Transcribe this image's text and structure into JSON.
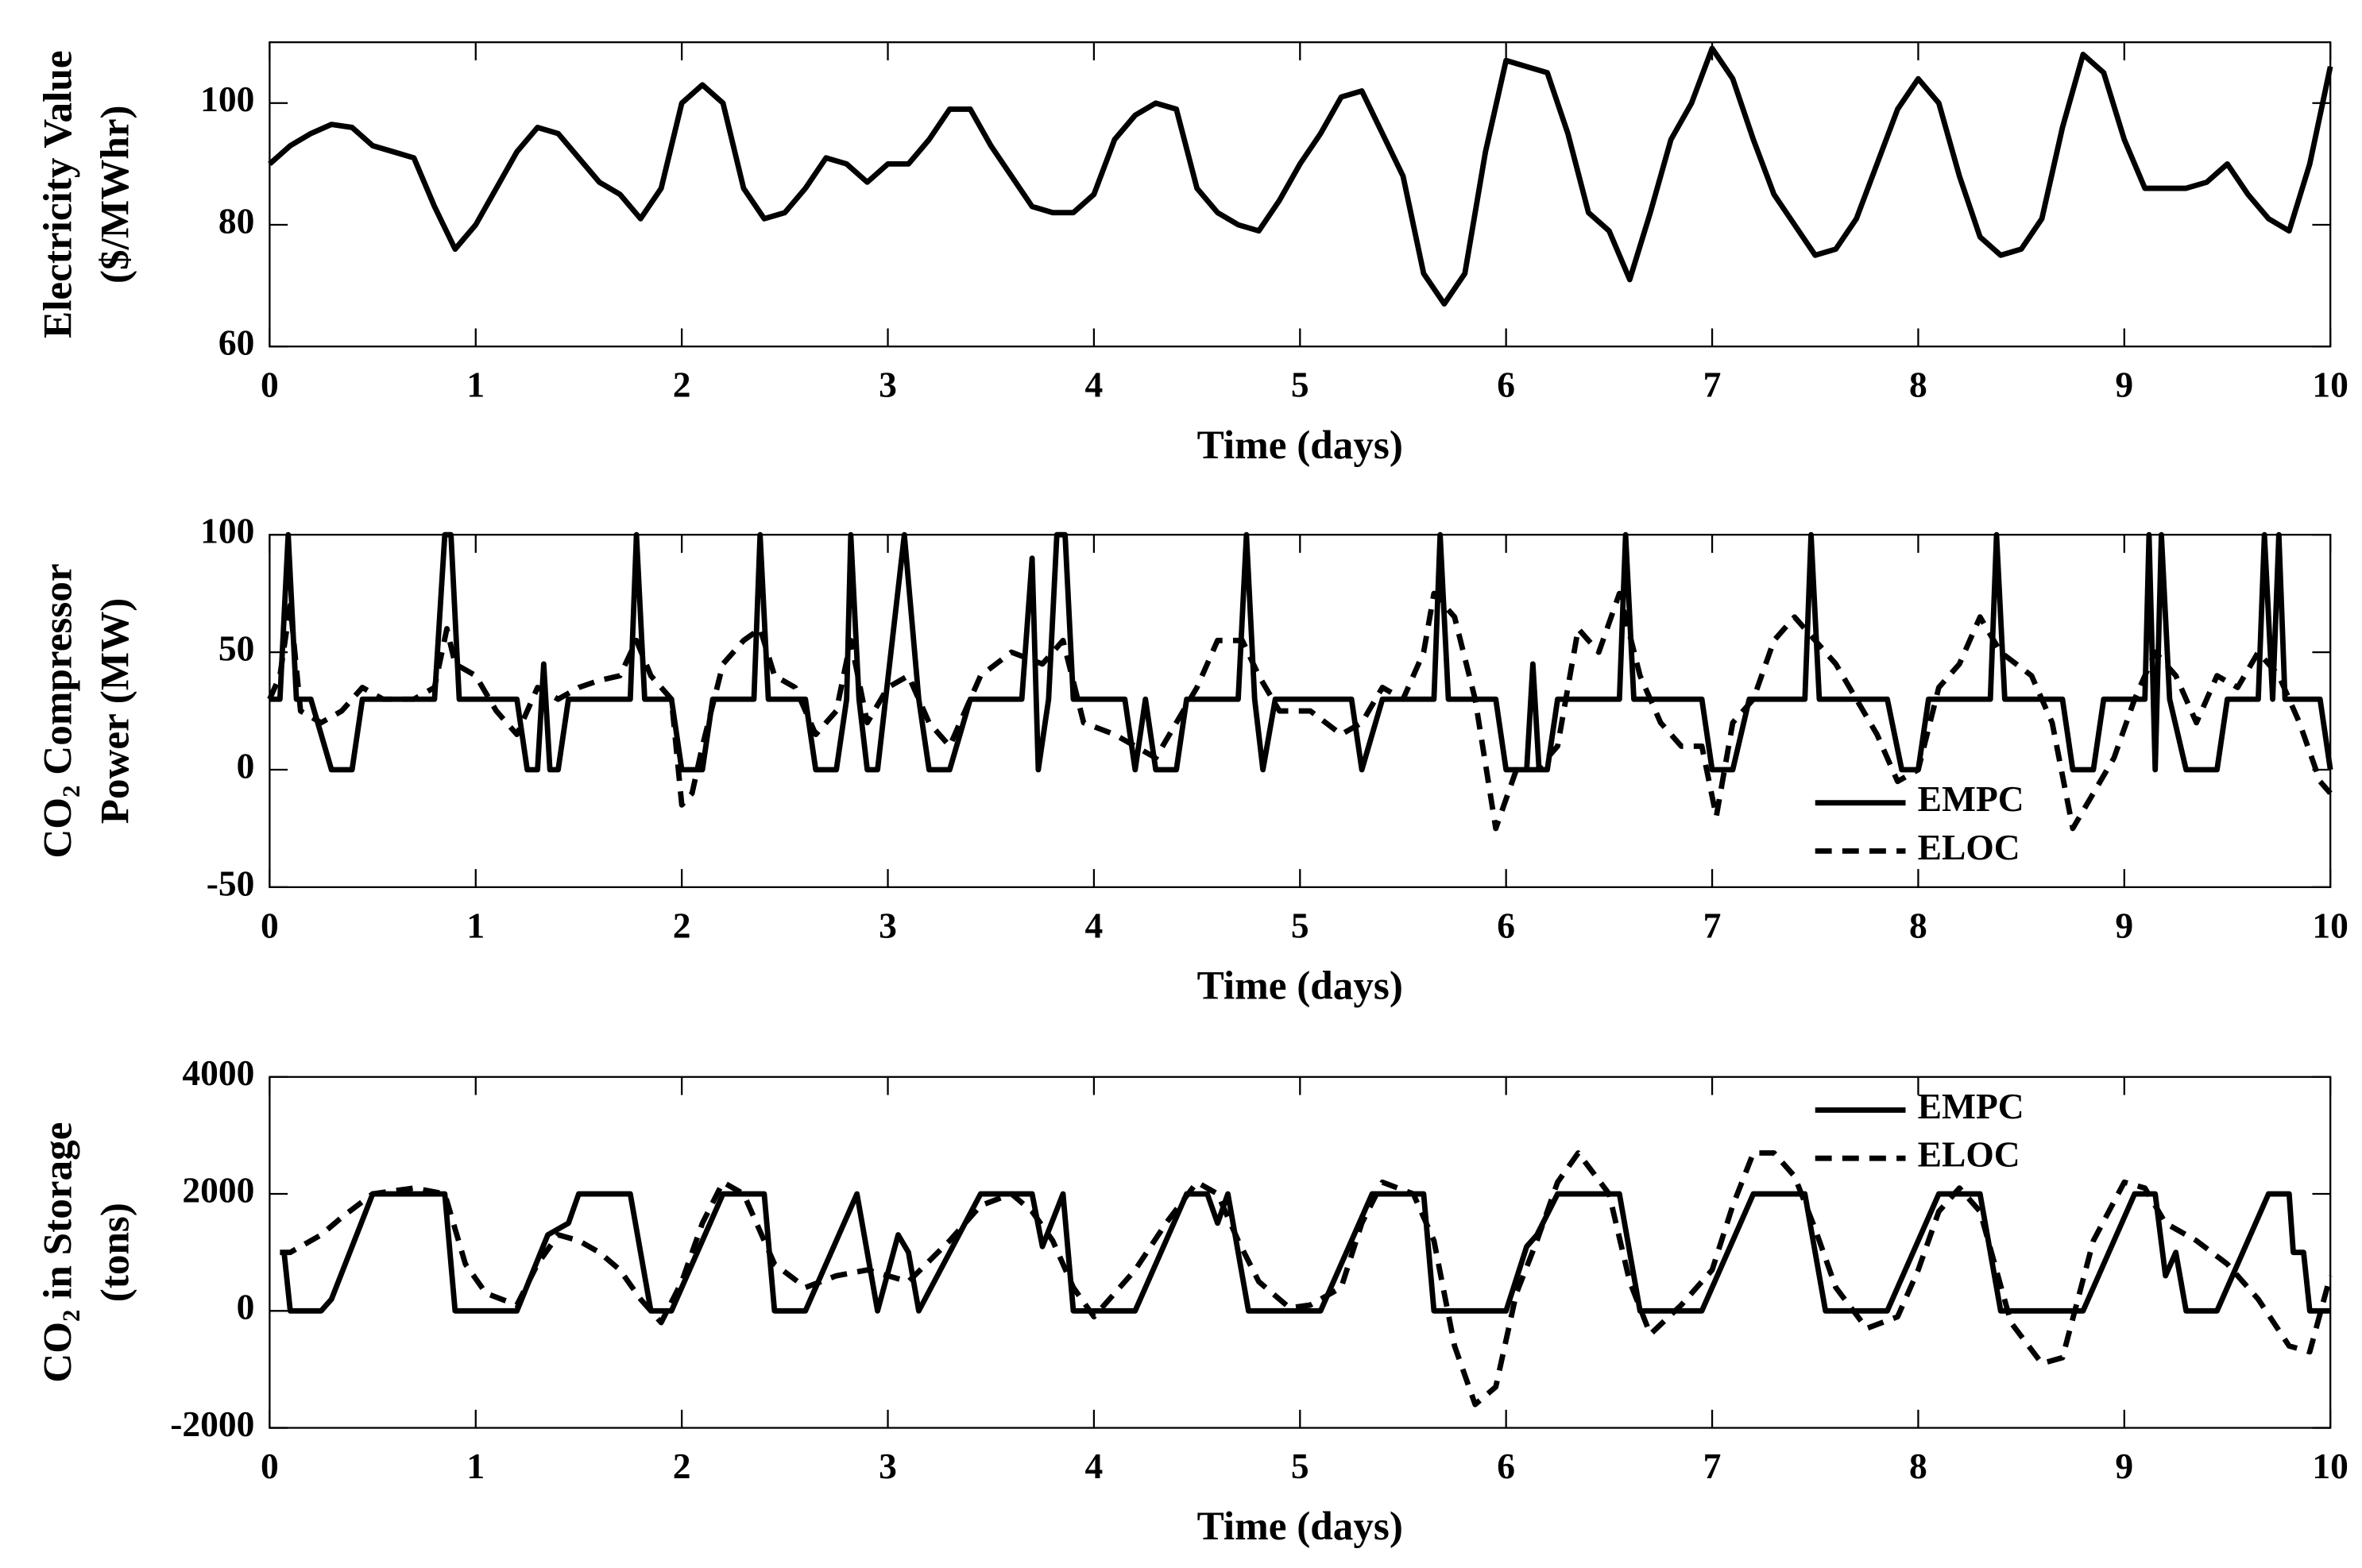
{
  "chart_data": [
    {
      "type": "line",
      "xlabel": "Time (days)",
      "ylabel": [
        "Electricity Value",
        "($/MWhr)"
      ],
      "xlim": [
        0,
        10
      ],
      "xticks": [
        0,
        1,
        2,
        3,
        4,
        5,
        6,
        7,
        8,
        9,
        10
      ],
      "ylim": [
        60,
        110
      ],
      "yticks": [
        60,
        80,
        100
      ],
      "grid": false,
      "series": [
        {
          "color": "#000000",
          "dash": false,
          "x": [
            0,
            0.1,
            0.2,
            0.3,
            0.4,
            0.5,
            0.6,
            0.7,
            0.8,
            0.9,
            1,
            1.1,
            1.2,
            1.3,
            1.4,
            1.5,
            1.6,
            1.7,
            1.8,
            1.9,
            2,
            2.1,
            2.2,
            2.3,
            2.4,
            2.5,
            2.6,
            2.7,
            2.8,
            2.9,
            3,
            3.1,
            3.2,
            3.3,
            3.4,
            3.5,
            3.6,
            3.7,
            3.8,
            3.9,
            4,
            4.1,
            4.2,
            4.3,
            4.4,
            4.5,
            4.6,
            4.7,
            4.8,
            4.9,
            5,
            5.1,
            5.2,
            5.3,
            5.4,
            5.5,
            5.6,
            5.7,
            5.8,
            5.9,
            6,
            6.1,
            6.2,
            6.3,
            6.4,
            6.5,
            6.6,
            6.7,
            6.8,
            6.9,
            7,
            7.1,
            7.2,
            7.3,
            7.4,
            7.5,
            7.6,
            7.7,
            7.8,
            7.9,
            8,
            8.1,
            8.2,
            8.3,
            8.4,
            8.5,
            8.6,
            8.7,
            8.8,
            8.9,
            9,
            9.1,
            9.2,
            9.3,
            9.4,
            9.5,
            9.6,
            9.7,
            9.8,
            9.9,
            10
          ],
          "values": [
            90,
            93,
            95,
            96.5,
            96,
            93,
            92,
            91,
            83,
            76,
            80,
            86,
            92,
            96,
            95,
            91,
            87,
            85,
            81,
            86,
            100,
            103,
            100,
            86,
            81,
            82,
            86,
            91,
            90,
            87,
            90,
            90,
            94,
            99,
            99,
            93,
            88,
            83,
            82,
            82,
            85,
            94,
            98,
            100,
            99,
            86,
            82,
            80,
            79,
            84,
            90,
            95,
            101,
            102,
            95,
            88,
            72,
            67,
            72,
            92,
            107,
            106,
            105,
            95,
            82,
            79,
            71,
            82,
            94,
            100,
            109,
            104,
            94,
            85,
            80,
            75,
            76,
            81,
            90,
            99,
            104,
            100,
            88,
            78,
            75,
            76,
            81,
            96,
            108,
            105,
            94,
            86,
            86,
            86,
            87,
            90,
            85,
            81,
            79,
            90,
            106
          ]
        }
      ]
    },
    {
      "type": "line",
      "xlabel": "Time (days)",
      "ylabel": [
        "CO₂ Compressor",
        "Power (MW)"
      ],
      "xlim": [
        0,
        10
      ],
      "xticks": [
        0,
        1,
        2,
        3,
        4,
        5,
        6,
        7,
        8,
        9,
        10
      ],
      "ylim": [
        -50,
        100
      ],
      "yticks": [
        -50,
        0,
        50,
        100
      ],
      "grid": false,
      "legend": "lower right",
      "series": [
        {
          "name": "EMPC",
          "color": "#000000",
          "dash": false,
          "x": [
            0,
            0.05,
            0.09,
            0.13,
            0.2,
            0.3,
            0.4,
            0.45,
            0.8,
            0.85,
            0.88,
            0.92,
            1.2,
            1.25,
            1.3,
            1.33,
            1.36,
            1.4,
            1.45,
            1.75,
            1.78,
            1.82,
            1.95,
            2,
            2.1,
            2.15,
            2.35,
            2.38,
            2.42,
            2.6,
            2.65,
            2.75,
            2.8,
            2.82,
            2.86,
            2.9,
            2.95,
            3.08,
            3.15,
            3.2,
            3.3,
            3.4,
            3.65,
            3.7,
            3.73,
            3.78,
            3.82,
            3.86,
            3.9,
            4.15,
            4.2,
            4.25,
            4.3,
            4.4,
            4.45,
            4.7,
            4.74,
            4.78,
            4.82,
            4.88,
            5.25,
            5.3,
            5.4,
            5.65,
            5.68,
            5.72,
            5.95,
            6,
            6.1,
            6.13,
            6.16,
            6.2,
            6.25,
            6.55,
            6.58,
            6.62,
            6.95,
            7,
            7.1,
            7.18,
            7.45,
            7.48,
            7.52,
            7.85,
            7.92,
            8,
            8.05,
            8.35,
            8.38,
            8.42,
            8.7,
            8.75,
            8.85,
            8.9,
            9.1,
            9.12,
            9.15,
            9.18,
            9.22,
            9.3,
            9.45,
            9.5,
            9.65,
            9.68,
            9.72,
            9.75,
            9.78,
            9.95,
            10
          ],
          "values": [
            30,
            30,
            100,
            30,
            30,
            0,
            0,
            30,
            30,
            100,
            100,
            30,
            30,
            0,
            0,
            45,
            0,
            0,
            30,
            30,
            100,
            30,
            30,
            0,
            0,
            30,
            30,
            100,
            30,
            30,
            0,
            0,
            30,
            100,
            30,
            0,
            0,
            100,
            30,
            0,
            0,
            30,
            30,
            90,
            0,
            30,
            100,
            100,
            30,
            30,
            0,
            30,
            0,
            0,
            30,
            30,
            100,
            30,
            0,
            30,
            30,
            0,
            30,
            30,
            100,
            30,
            30,
            0,
            0,
            45,
            0,
            0,
            30,
            30,
            100,
            30,
            30,
            0,
            0,
            30,
            30,
            100,
            30,
            30,
            0,
            0,
            30,
            30,
            100,
            30,
            30,
            0,
            0,
            30,
            30,
            100,
            0,
            100,
            30,
            0,
            0,
            30,
            30,
            100,
            30,
            100,
            30,
            30,
            0
          ]
        },
        {
          "name": "ELOC",
          "color": "#000000",
          "dash": true,
          "x": [
            0,
            0.05,
            0.1,
            0.15,
            0.25,
            0.35,
            0.45,
            0.55,
            0.7,
            0.8,
            0.86,
            0.9,
            1,
            1.1,
            1.2,
            1.3,
            1.4,
            1.5,
            1.6,
            1.7,
            1.78,
            1.85,
            1.95,
            2,
            2.05,
            2.1,
            2.2,
            2.3,
            2.38,
            2.45,
            2.55,
            2.65,
            2.75,
            2.82,
            2.9,
            3,
            3.1,
            3.2,
            3.3,
            3.45,
            3.6,
            3.75,
            3.85,
            3.95,
            4.1,
            4.2,
            4.3,
            4.4,
            4.5,
            4.6,
            4.72,
            4.8,
            4.9,
            5.05,
            5.2,
            5.3,
            5.4,
            5.5,
            5.6,
            5.65,
            5.75,
            5.85,
            5.95,
            6.05,
            6.15,
            6.25,
            6.35,
            6.45,
            6.55,
            6.65,
            6.75,
            6.85,
            6.95,
            7.02,
            7.1,
            7.2,
            7.3,
            7.4,
            7.5,
            7.6,
            7.7,
            7.8,
            7.9,
            8,
            8.1,
            8.2,
            8.3,
            8.4,
            8.55,
            8.65,
            8.75,
            8.85,
            8.95,
            9.05,
            9.15,
            9.25,
            9.35,
            9.45,
            9.55,
            9.65,
            9.75,
            9.85,
            9.95,
            10
          ],
          "values": [
            30,
            40,
            70,
            25,
            20,
            25,
            35,
            30,
            30,
            35,
            60,
            45,
            40,
            25,
            15,
            35,
            30,
            35,
            38,
            40,
            55,
            40,
            30,
            -15,
            -10,
            10,
            45,
            55,
            60,
            40,
            35,
            15,
            25,
            55,
            20,
            35,
            40,
            20,
            10,
            40,
            50,
            45,
            55,
            20,
            15,
            10,
            5,
            20,
            35,
            55,
            55,
            40,
            25,
            25,
            15,
            20,
            35,
            30,
            50,
            75,
            65,
            30,
            -25,
            0,
            0,
            10,
            60,
            50,
            75,
            40,
            20,
            10,
            10,
            -20,
            20,
            30,
            55,
            65,
            55,
            45,
            30,
            15,
            -5,
            0,
            35,
            45,
            65,
            50,
            40,
            20,
            -25,
            -10,
            5,
            30,
            50,
            40,
            20,
            40,
            35,
            50,
            40,
            20,
            -5,
            -10
          ]
        }
      ]
    },
    {
      "type": "line",
      "xlabel": "Time (days)",
      "ylabel": [
        "CO₂ in Storage",
        "(tons)"
      ],
      "xlim": [
        0,
        10
      ],
      "xticks": [
        0,
        1,
        2,
        3,
        4,
        5,
        6,
        7,
        8,
        9,
        10
      ],
      "ylim": [
        -2000,
        4000
      ],
      "yticks": [
        -2000,
        0,
        2000,
        4000
      ],
      "grid": false,
      "legend": "upper right",
      "series": [
        {
          "name": "EMPC",
          "color": "#000000",
          "dash": false,
          "x": [
            0.07,
            0.1,
            0.25,
            0.3,
            0.5,
            0.85,
            0.9,
            1.2,
            1.35,
            1.45,
            1.5,
            1.75,
            1.85,
            1.95,
            2.2,
            2.4,
            2.45,
            2.6,
            2.85,
            2.95,
            3.05,
            3.1,
            3.15,
            3.3,
            3.45,
            3.7,
            3.75,
            3.85,
            3.9,
            4.2,
            4.45,
            4.55,
            4.6,
            4.65,
            4.75,
            5.1,
            5.35,
            5.6,
            5.65,
            6,
            6.1,
            6.15,
            6.25,
            6.55,
            6.65,
            6.95,
            7.2,
            7.45,
            7.55,
            7.85,
            8.1,
            8.3,
            8.4,
            8.8,
            9.05,
            9.15,
            9.2,
            9.25,
            9.3,
            9.45,
            9.7,
            9.8,
            9.82,
            9.87,
            9.9,
            10
          ],
          "values": [
            1000,
            0,
            0,
            200,
            2000,
            2000,
            0,
            0,
            1300,
            1500,
            2000,
            2000,
            0,
            0,
            2000,
            2000,
            0,
            0,
            2000,
            0,
            1300,
            1000,
            0,
            1000,
            2000,
            2000,
            1100,
            2000,
            0,
            0,
            2000,
            2000,
            1500,
            2000,
            0,
            0,
            2000,
            2000,
            0,
            0,
            1100,
            1300,
            2000,
            2000,
            0,
            0,
            2000,
            2000,
            0,
            0,
            2000,
            2000,
            0,
            0,
            2000,
            2000,
            600,
            1000,
            0,
            0,
            2000,
            2000,
            1000,
            1000,
            0,
            0
          ]
        },
        {
          "name": "ELOC",
          "color": "#000000",
          "dash": true,
          "x": [
            0.05,
            0.1,
            0.25,
            0.35,
            0.5,
            0.7,
            0.85,
            0.95,
            1.05,
            1.2,
            1.3,
            1.4,
            1.5,
            1.6,
            1.7,
            1.8,
            1.9,
            2,
            2.1,
            2.2,
            2.3,
            2.45,
            2.6,
            2.75,
            2.9,
            3,
            3.1,
            3.3,
            3.45,
            3.6,
            3.7,
            3.8,
            3.9,
            4,
            4.2,
            4.35,
            4.5,
            4.6,
            4.7,
            4.8,
            4.95,
            5.05,
            5.2,
            5.3,
            5.4,
            5.55,
            5.65,
            5.75,
            5.85,
            5.95,
            6.05,
            6.15,
            6.25,
            6.35,
            6.5,
            6.6,
            6.7,
            6.85,
            7,
            7.1,
            7.2,
            7.3,
            7.4,
            7.5,
            7.6,
            7.75,
            7.9,
            8,
            8.1,
            8.2,
            8.3,
            8.45,
            8.6,
            8.7,
            8.85,
            9,
            9.1,
            9.2,
            9.35,
            9.5,
            9.65,
            9.8,
            9.9,
            10
          ],
          "values": [
            1000,
            1000,
            1300,
            1600,
            2000,
            2100,
            2000,
            800,
            300,
            100,
            800,
            1300,
            1200,
            1000,
            700,
            200,
            -200,
            500,
            1500,
            2200,
            2000,
            800,
            400,
            600,
            700,
            600,
            500,
            1200,
            1800,
            2000,
            1700,
            1200,
            400,
            -100,
            700,
            1500,
            2200,
            2000,
            1200,
            500,
            50,
            100,
            400,
            1500,
            2200,
            2000,
            1200,
            -600,
            -1600,
            -1300,
            300,
            1200,
            2200,
            2700,
            2000,
            500,
            -400,
            100,
            700,
            1800,
            2700,
            2700,
            2300,
            1400,
            400,
            -300,
            -100,
            700,
            1700,
            2100,
            1700,
            -200,
            -900,
            -800,
            1200,
            2200,
            2100,
            1500,
            1200,
            800,
            200,
            -600,
            -700,
            600
          ]
        }
      ]
    }
  ]
}
